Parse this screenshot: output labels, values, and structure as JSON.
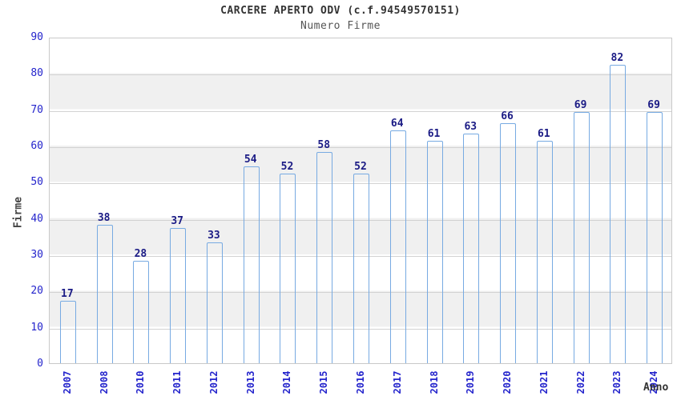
{
  "title": "CARCERE APERTO ODV (c.f.94549570151)",
  "subtitle": "Numero Firme",
  "y_axis": {
    "label": "Firme",
    "ticks": [
      0,
      10,
      20,
      30,
      40,
      50,
      60,
      70,
      80,
      90
    ],
    "max": 90
  },
  "x_axis": {
    "label": "Anno"
  },
  "chart_data": {
    "type": "bar",
    "title": "CARCERE APERTO ODV (c.f.94549570151)",
    "subtitle": "Numero Firme",
    "xlabel": "Anno",
    "ylabel": "Firme",
    "ylim": [
      0,
      90
    ],
    "grid": true,
    "categories": [
      "2007",
      "2008",
      "2010",
      "2011",
      "2012",
      "2013",
      "2014",
      "2015",
      "2016",
      "2017",
      "2018",
      "2019",
      "2020",
      "2021",
      "2022",
      "2023",
      "2024"
    ],
    "values": [
      17,
      38,
      28,
      37,
      33,
      54,
      52,
      58,
      52,
      64,
      61,
      63,
      66,
      61,
      69,
      82,
      69
    ],
    "colors": {
      "bar_dark": "#0f0f6b",
      "bar_highlight": "#ccd3ee",
      "bar_border": "#77aae2",
      "value_label": "#1b1b85",
      "tick_label": "#2424cc",
      "band_grey": "#f0f0f0",
      "gridline": "#d2d2d2",
      "title_text": "#333333",
      "subtitle_text": "#555555"
    }
  }
}
